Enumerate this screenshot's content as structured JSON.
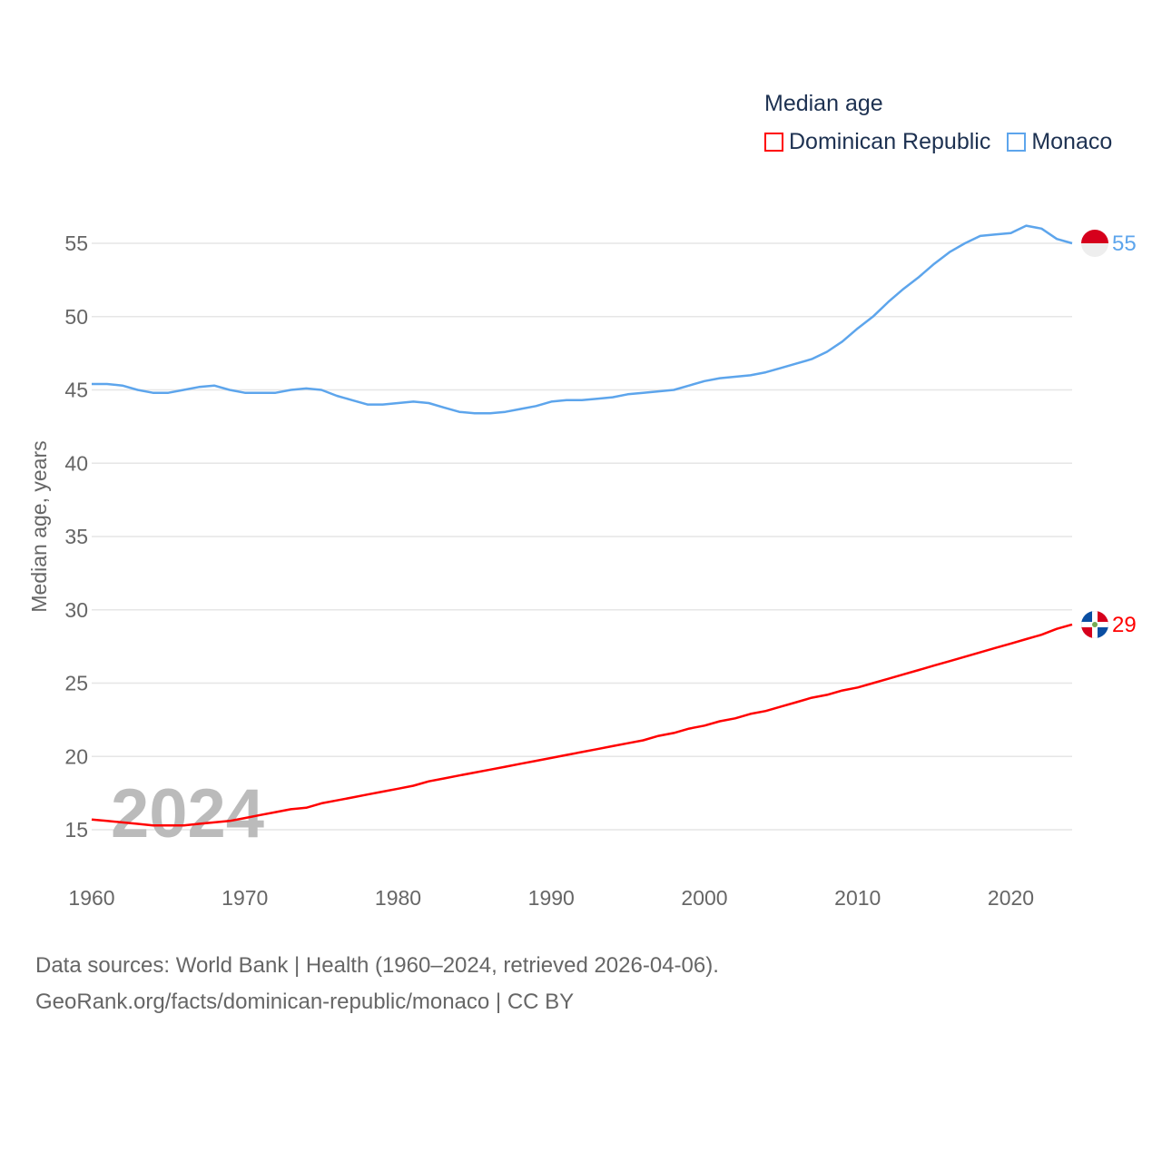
{
  "chart_data": {
    "type": "line",
    "title": "Median age",
    "ylabel": "Median age, years",
    "xlabel": "",
    "xlim": [
      1960,
      2024
    ],
    "ylim": [
      15,
      55
    ],
    "x_ticks": [
      "1960",
      "1970",
      "1980",
      "1990",
      "2000",
      "2010",
      "2020"
    ],
    "y_ticks": [
      "15",
      "20",
      "25",
      "30",
      "35",
      "40",
      "45",
      "50",
      "55"
    ],
    "grid": true,
    "legend_placement": "top-right",
    "year_watermark": "2024",
    "x": [
      1960,
      1961,
      1962,
      1963,
      1964,
      1965,
      1966,
      1967,
      1968,
      1969,
      1970,
      1971,
      1972,
      1973,
      1974,
      1975,
      1976,
      1977,
      1978,
      1979,
      1980,
      1981,
      1982,
      1983,
      1984,
      1985,
      1986,
      1987,
      1988,
      1989,
      1990,
      1991,
      1992,
      1993,
      1994,
      1995,
      1996,
      1997,
      1998,
      1999,
      2000,
      2001,
      2002,
      2003,
      2004,
      2005,
      2006,
      2007,
      2008,
      2009,
      2010,
      2011,
      2012,
      2013,
      2014,
      2015,
      2016,
      2017,
      2018,
      2019,
      2020,
      2021,
      2022,
      2023,
      2024
    ],
    "series": [
      {
        "name": "Dominican Republic",
        "color": "#ff0000",
        "end_label": "29",
        "values": [
          15.7,
          15.6,
          15.5,
          15.4,
          15.3,
          15.3,
          15.3,
          15.4,
          15.5,
          15.6,
          15.8,
          16.0,
          16.2,
          16.4,
          16.5,
          16.8,
          17.0,
          17.2,
          17.4,
          17.6,
          17.8,
          18.0,
          18.3,
          18.5,
          18.7,
          18.9,
          19.1,
          19.3,
          19.5,
          19.7,
          19.9,
          20.1,
          20.3,
          20.5,
          20.7,
          20.9,
          21.1,
          21.4,
          21.6,
          21.9,
          22.1,
          22.4,
          22.6,
          22.9,
          23.1,
          23.4,
          23.7,
          24.0,
          24.2,
          24.5,
          24.7,
          25.0,
          25.3,
          25.6,
          25.9,
          26.2,
          26.5,
          26.8,
          27.1,
          27.4,
          27.7,
          28.0,
          28.3,
          28.7,
          29.0
        ]
      },
      {
        "name": "Monaco",
        "color": "#5da5ec",
        "end_label": "55",
        "values": [
          45.4,
          45.4,
          45.3,
          45.0,
          44.8,
          44.8,
          45.0,
          45.2,
          45.3,
          45.0,
          44.8,
          44.8,
          44.8,
          45.0,
          45.1,
          45.0,
          44.6,
          44.3,
          44.0,
          44.0,
          44.1,
          44.2,
          44.1,
          43.8,
          43.5,
          43.4,
          43.4,
          43.5,
          43.7,
          43.9,
          44.2,
          44.3,
          44.3,
          44.4,
          44.5,
          44.7,
          44.8,
          44.9,
          45.0,
          45.3,
          45.6,
          45.8,
          45.9,
          46.0,
          46.2,
          46.5,
          46.8,
          47.1,
          47.6,
          48.3,
          49.2,
          50.0,
          51.0,
          51.9,
          52.7,
          53.6,
          54.4,
          55.0,
          55.5,
          55.6,
          55.7,
          56.2,
          56.0,
          55.3,
          55.0
        ]
      }
    ]
  },
  "footer": {
    "line1": "Data sources: World Bank | Health (1960–2024, retrieved 2026-04-06).",
    "line2": "GeoRank.org/facts/dominican-republic/monaco | CC BY"
  }
}
